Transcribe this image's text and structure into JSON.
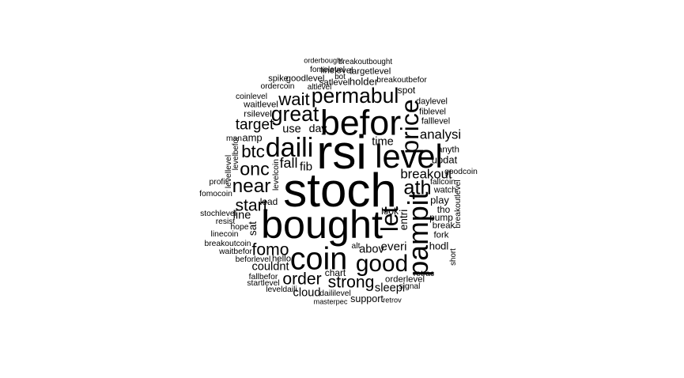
{
  "word_cloud": {
    "text_color": "#000000",
    "background": "#ffffff",
    "words": [
      {
        "text": "stoch",
        "weight": 1.0,
        "rotate": false
      },
      {
        "text": "rsi",
        "weight": 1.0,
        "rotate": false
      },
      {
        "text": "bought",
        "weight": 0.82,
        "rotate": false
      },
      {
        "text": "befor",
        "weight": 0.72,
        "rotate": false
      },
      {
        "text": "level",
        "weight": 0.66,
        "rotate": false
      },
      {
        "text": "coin",
        "weight": 0.62,
        "rotate": false
      },
      {
        "text": "daili",
        "weight": 0.52,
        "rotate": false
      },
      {
        "text": "pampit",
        "weight": 0.55,
        "rotate": true
      },
      {
        "text": "price",
        "weight": 0.48,
        "rotate": true
      },
      {
        "text": "let",
        "weight": 0.45,
        "rotate": true
      },
      {
        "text": "good",
        "weight": 0.44,
        "rotate": false
      },
      {
        "text": "permabul",
        "weight": 0.38,
        "rotate": false
      },
      {
        "text": "great",
        "weight": 0.38,
        "rotate": false
      },
      {
        "text": "ath",
        "weight": 0.36,
        "rotate": false
      },
      {
        "text": "near",
        "weight": 0.34,
        "rotate": false
      },
      {
        "text": "onc",
        "weight": 0.32,
        "rotate": false
      },
      {
        "text": "btc",
        "weight": 0.3,
        "rotate": false
      },
      {
        "text": "wait",
        "weight": 0.3,
        "rotate": false
      },
      {
        "text": "start",
        "weight": 0.28,
        "rotate": false
      },
      {
        "text": "fomo",
        "weight": 0.28,
        "rotate": false
      },
      {
        "text": "order",
        "weight": 0.28,
        "rotate": false
      },
      {
        "text": "strong",
        "weight": 0.28,
        "rotate": false
      },
      {
        "text": "target",
        "weight": 0.24,
        "rotate": false
      },
      {
        "text": "fall",
        "weight": 0.22,
        "rotate": false
      },
      {
        "text": "analysi",
        "weight": 0.2,
        "rotate": false
      },
      {
        "text": "breakout",
        "weight": 0.2,
        "rotate": false
      },
      {
        "text": "fib",
        "weight": 0.17,
        "rotate": false
      },
      {
        "text": "everi",
        "weight": 0.17,
        "rotate": false
      },
      {
        "text": "abov",
        "weight": 0.16,
        "rotate": false
      },
      {
        "text": "couldnt",
        "weight": 0.16,
        "rotate": false
      },
      {
        "text": "time",
        "weight": 0.16,
        "rotate": false
      },
      {
        "text": "use",
        "weight": 0.16,
        "rotate": false
      },
      {
        "text": "day",
        "weight": 0.15,
        "rotate": false
      },
      {
        "text": "line",
        "weight": 0.16,
        "rotate": false
      },
      {
        "text": "sleepi",
        "weight": 0.16,
        "rotate": false
      },
      {
        "text": "cloud",
        "weight": 0.16,
        "rotate": false
      },
      {
        "text": "amp",
        "weight": 0.13,
        "rotate": false
      },
      {
        "text": "sat",
        "weight": 0.14,
        "rotate": true
      },
      {
        "text": "entri",
        "weight": 0.14,
        "rotate": true
      },
      {
        "text": "hodl",
        "weight": 0.13,
        "rotate": false
      },
      {
        "text": "updat",
        "weight": 0.13,
        "rotate": false
      },
      {
        "text": "play",
        "weight": 0.13,
        "rotate": false
      },
      {
        "text": "holder",
        "weight": 0.13,
        "rotate": false
      },
      {
        "text": "support",
        "weight": 0.12,
        "rotate": false
      },
      {
        "text": "lead",
        "weight": 0.11,
        "rotate": false
      },
      {
        "text": "look",
        "weight": 0.11,
        "rotate": false
      },
      {
        "text": "spot",
        "weight": 0.11,
        "rotate": false
      },
      {
        "text": "chart",
        "weight": 0.11,
        "rotate": false
      },
      {
        "text": "pump",
        "weight": 0.11,
        "rotate": false
      },
      {
        "text": "tho",
        "weight": 0.11,
        "rotate": false
      },
      {
        "text": "fork",
        "weight": 0.1,
        "rotate": false
      },
      {
        "text": "break",
        "weight": 0.1,
        "rotate": false
      },
      {
        "text": "anyth",
        "weight": 0.1,
        "rotate": false
      },
      {
        "text": "hello",
        "weight": 0.1,
        "rotate": false
      },
      {
        "text": "goodlevel",
        "weight": 0.1,
        "rotate": false
      },
      {
        "text": "satlevel",
        "weight": 0.1,
        "rotate": false
      },
      {
        "text": "linelevel",
        "weight": 0.1,
        "rotate": false
      },
      {
        "text": "targetlevel",
        "weight": 0.1,
        "rotate": false
      },
      {
        "text": "waitlevel",
        "weight": 0.1,
        "rotate": false
      },
      {
        "text": "rsilevel",
        "weight": 0.1,
        "rotate": false
      },
      {
        "text": "orderlevel",
        "weight": 0.1,
        "rotate": false
      },
      {
        "text": "daylevel",
        "weight": 0.09,
        "rotate": false
      },
      {
        "text": "fiblevel",
        "weight": 0.09,
        "rotate": false
      },
      {
        "text": "falllevel",
        "weight": 0.09,
        "rotate": false
      },
      {
        "text": "watch",
        "weight": 0.09,
        "rotate": false
      },
      {
        "text": "spike",
        "weight": 0.09,
        "rotate": false
      },
      {
        "text": "fomolevel",
        "weight": 0.08,
        "rotate": false
      },
      {
        "text": "coinlevel",
        "weight": 0.08,
        "rotate": false
      },
      {
        "text": "man",
        "weight": 0.08,
        "rotate": false
      },
      {
        "text": "profit",
        "weight": 0.08,
        "rotate": false
      },
      {
        "text": "fomocoin",
        "weight": 0.08,
        "rotate": false
      },
      {
        "text": "stochlevel",
        "weight": 0.08,
        "rotate": false
      },
      {
        "text": "resist",
        "weight": 0.08,
        "rotate": false
      },
      {
        "text": "hope",
        "weight": 0.08,
        "rotate": false
      },
      {
        "text": "linecoin",
        "weight": 0.08,
        "rotate": false
      },
      {
        "text": "breakoutcoin",
        "weight": 0.08,
        "rotate": false
      },
      {
        "text": "waitbefor",
        "weight": 0.08,
        "rotate": false
      },
      {
        "text": "beforlevel",
        "weight": 0.08,
        "rotate": false
      },
      {
        "text": "fallbefor",
        "weight": 0.08,
        "rotate": false
      },
      {
        "text": "startlevel",
        "weight": 0.08,
        "rotate": false
      },
      {
        "text": "leveldaili",
        "weight": 0.08,
        "rotate": false
      },
      {
        "text": "daililevel",
        "weight": 0.08,
        "rotate": false
      },
      {
        "text": "signal",
        "weight": 0.08,
        "rotate": false
      },
      {
        "text": "retrac",
        "weight": 0.08,
        "rotate": false
      },
      {
        "text": "alt",
        "weight": 0.08,
        "rotate": false
      },
      {
        "text": "fallcoin",
        "weight": 0.08,
        "rotate": false
      },
      {
        "text": "goodcoin",
        "weight": 0.08,
        "rotate": false
      },
      {
        "text": "breakoutbefor",
        "weight": 0.08,
        "rotate": false
      },
      {
        "text": "ordercoin",
        "weight": 0.08,
        "rotate": false
      },
      {
        "text": "altlevel",
        "weight": 0.07,
        "rotate": false
      },
      {
        "text": "bot",
        "weight": 0.07,
        "rotate": false
      },
      {
        "text": "breakoutbought",
        "weight": 0.07,
        "rotate": false
      },
      {
        "text": "orderbought",
        "weight": 0.06,
        "rotate": false
      },
      {
        "text": "levelbefor",
        "weight": 0.07,
        "rotate": true
      },
      {
        "text": "levellevel",
        "weight": 0.08,
        "rotate": true
      },
      {
        "text": "levelcoin",
        "weight": 0.08,
        "rotate": true
      },
      {
        "text": "breakoutlevel",
        "weight": 0.08,
        "rotate": true
      },
      {
        "text": "short",
        "weight": 0.07,
        "rotate": true
      },
      {
        "text": "masterpec",
        "weight": 0.06,
        "rotate": false
      },
      {
        "text": "retrov",
        "weight": 0.06,
        "rotate": false
      }
    ]
  }
}
